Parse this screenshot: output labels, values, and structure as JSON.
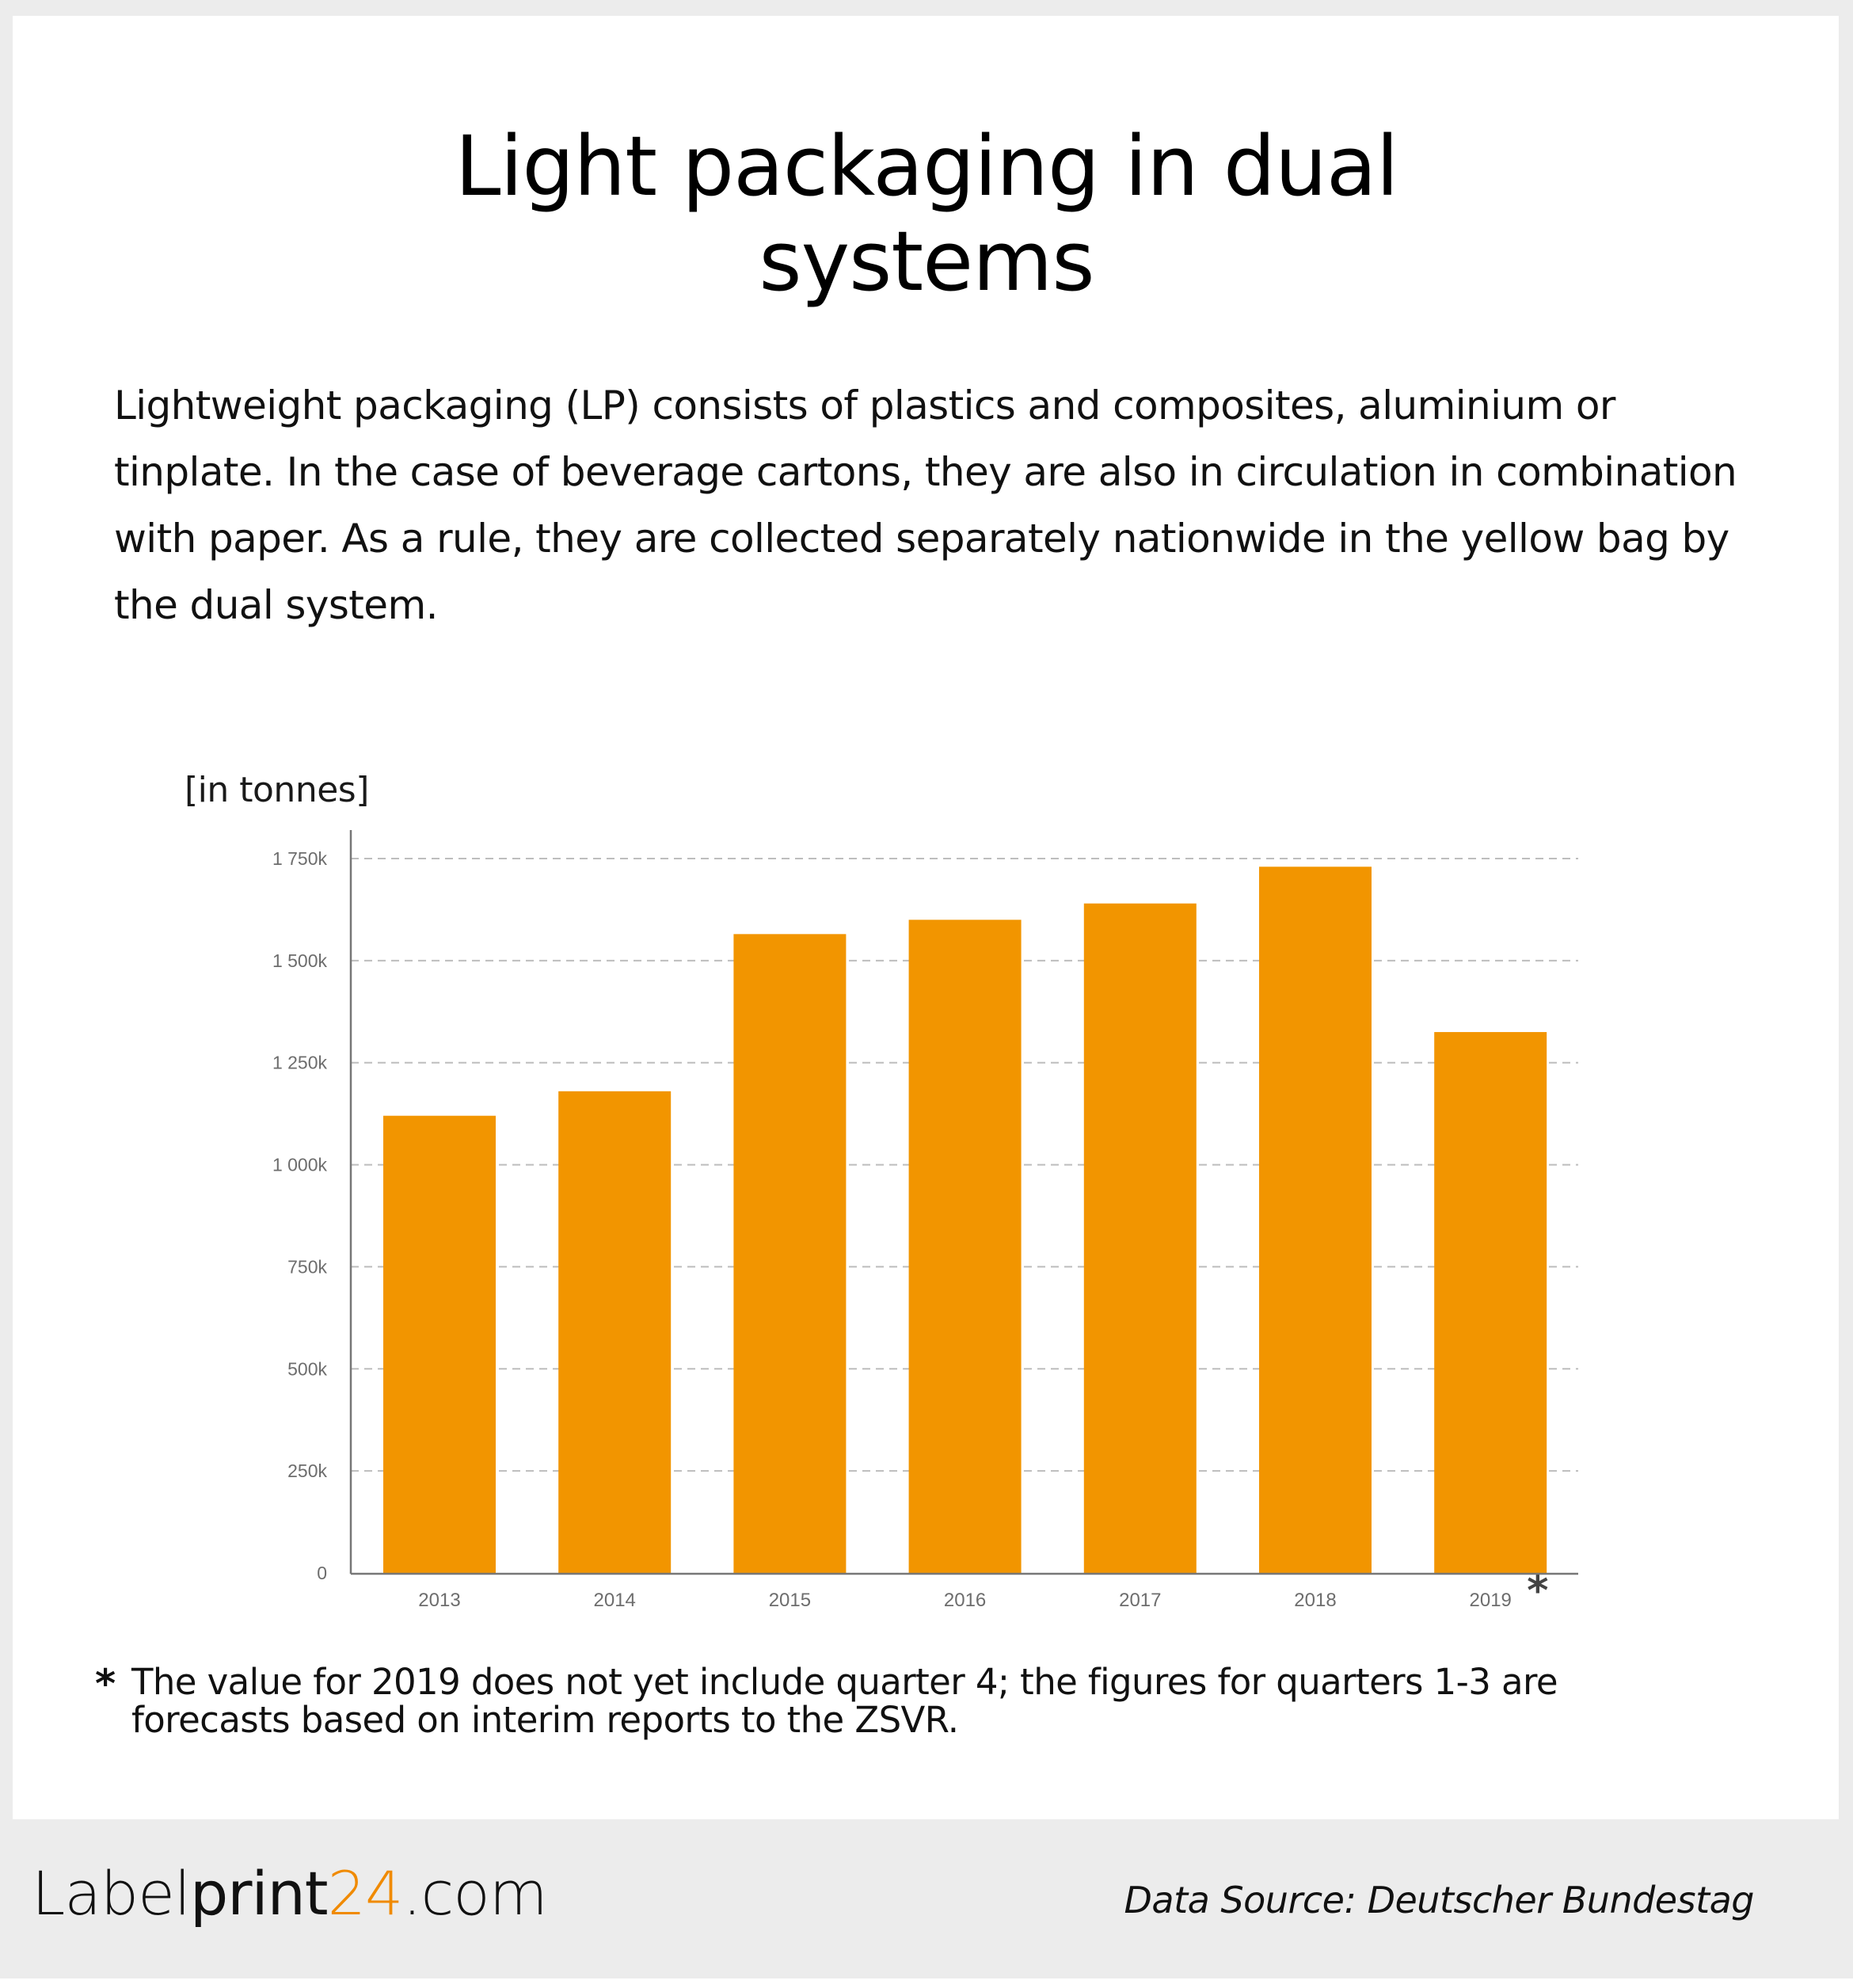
{
  "title": "Light packaging in dual systems",
  "title_lines": [
    "Light packaging in dual",
    "systems"
  ],
  "intro": "Lightweight packaging (LP) consists of plastics and composites, aluminium or tinplate. In the case of beverage cartons, they are also in circulation in combination with paper. As a rule, they are collected separately nationwide in the yellow bag by the dual system.",
  "footnote": {
    "marker": "*",
    "text": "The value for 2019 does not yet include quarter 4; the figures for quarters 1-3 are forecasts based on interim reports to the ZSVR."
  },
  "footer": {
    "logo": {
      "part1": "Label",
      "part2": "print",
      "part3": "24",
      "part4": ".com"
    },
    "source": "Data Source: Deutscher Bundestag"
  },
  "colors": {
    "bar": "#f29500",
    "accent": "#f08a00",
    "grid": "#bdbdbd",
    "axis": "#777777",
    "background": "#ececec"
  },
  "chart_data": {
    "type": "bar",
    "title": "Light packaging in dual systems",
    "ylabel": "[in tonnes]",
    "xlabel": "",
    "categories": [
      "2013",
      "2014",
      "2015",
      "2016",
      "2017",
      "2018",
      "2019"
    ],
    "category_markers": [
      "",
      "",
      "",
      "",
      "",
      "",
      "*"
    ],
    "values": [
      1120000,
      1180000,
      1565000,
      1600000,
      1640000,
      1730000,
      1325000
    ],
    "ylim": [
      0,
      1750000
    ],
    "yticks": [
      0,
      250000,
      500000,
      750000,
      1000000,
      1250000,
      1500000,
      1750000
    ],
    "ytick_labels": [
      "0",
      "250k",
      "500k",
      "750k",
      "1 000k",
      "1 250k",
      "1 500k",
      "1 750k"
    ],
    "grid": true,
    "grid_style": "dashed",
    "legend": "none"
  }
}
